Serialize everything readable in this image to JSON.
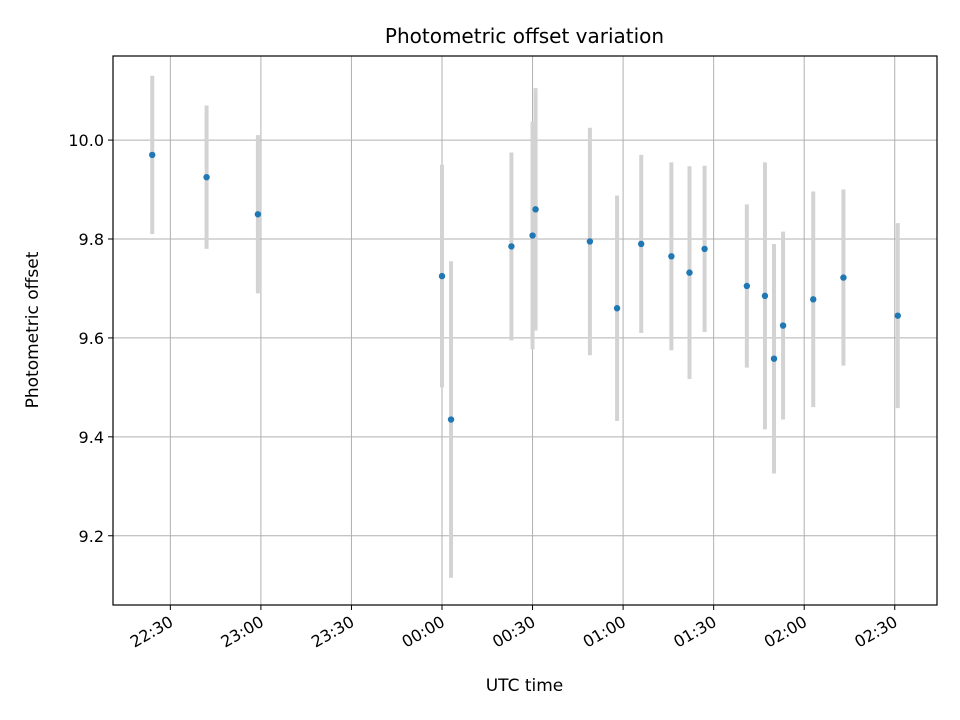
{
  "chart_data": {
    "type": "scatter",
    "title": "Photometric offset variation",
    "xlabel": "UTC time",
    "ylabel": "Photometric offset",
    "grid": true,
    "legend": "none",
    "xlim": [
      "22:11",
      "02:44"
    ],
    "ylim": [
      9.06,
      10.17
    ],
    "x_ticks": [
      "22:30",
      "23:00",
      "23:30",
      "00:00",
      "00:30",
      "01:00",
      "01:30",
      "02:00",
      "02:30"
    ],
    "y_ticks": [
      "9.2",
      "9.4",
      "9.6",
      "9.8",
      "10.0"
    ],
    "x_tick_values": [
      "22:30",
      "23:00",
      "23:30",
      "00:00",
      "00:30",
      "01:00",
      "01:30",
      "02:00",
      "02:30"
    ],
    "y_tick_values": [
      9.2,
      9.4,
      9.6,
      9.8,
      10.0
    ],
    "point_color": "#1f77b4",
    "errorbar_color": "#d3d3d3",
    "points": [
      {
        "x": "22:24",
        "y": 9.97,
        "yerr": 0.16
      },
      {
        "x": "22:42",
        "y": 9.925,
        "yerr": 0.145
      },
      {
        "x": "22:59",
        "y": 9.85,
        "yerr": 0.16
      },
      {
        "x": "00:00",
        "y": 9.725,
        "yerr": 0.225
      },
      {
        "x": "00:03",
        "y": 9.435,
        "yerr": 0.32
      },
      {
        "x": "00:23",
        "y": 9.785,
        "yerr": 0.19
      },
      {
        "x": "00:30",
        "y": 9.807,
        "yerr": 0.23
      },
      {
        "x": "00:31",
        "y": 9.86,
        "yerr": 0.245
      },
      {
        "x": "00:49",
        "y": 9.795,
        "yerr": 0.23
      },
      {
        "x": "00:58",
        "y": 9.66,
        "yerr": 0.228
      },
      {
        "x": "01:06",
        "y": 9.79,
        "yerr": 0.18
      },
      {
        "x": "01:16",
        "y": 9.765,
        "yerr": 0.19
      },
      {
        "x": "01:22",
        "y": 9.732,
        "yerr": 0.215
      },
      {
        "x": "01:27",
        "y": 9.78,
        "yerr": 0.168
      },
      {
        "x": "01:41",
        "y": 9.705,
        "yerr": 0.165
      },
      {
        "x": "01:47",
        "y": 9.685,
        "yerr": 0.27
      },
      {
        "x": "01:50",
        "y": 9.558,
        "yerr": 0.232
      },
      {
        "x": "01:53",
        "y": 9.625,
        "yerr": 0.19
      },
      {
        "x": "02:03",
        "y": 9.678,
        "yerr": 0.218
      },
      {
        "x": "02:13",
        "y": 9.722,
        "yerr": 0.178
      },
      {
        "x": "02:31",
        "y": 9.645,
        "yerr": 0.187
      }
    ]
  }
}
